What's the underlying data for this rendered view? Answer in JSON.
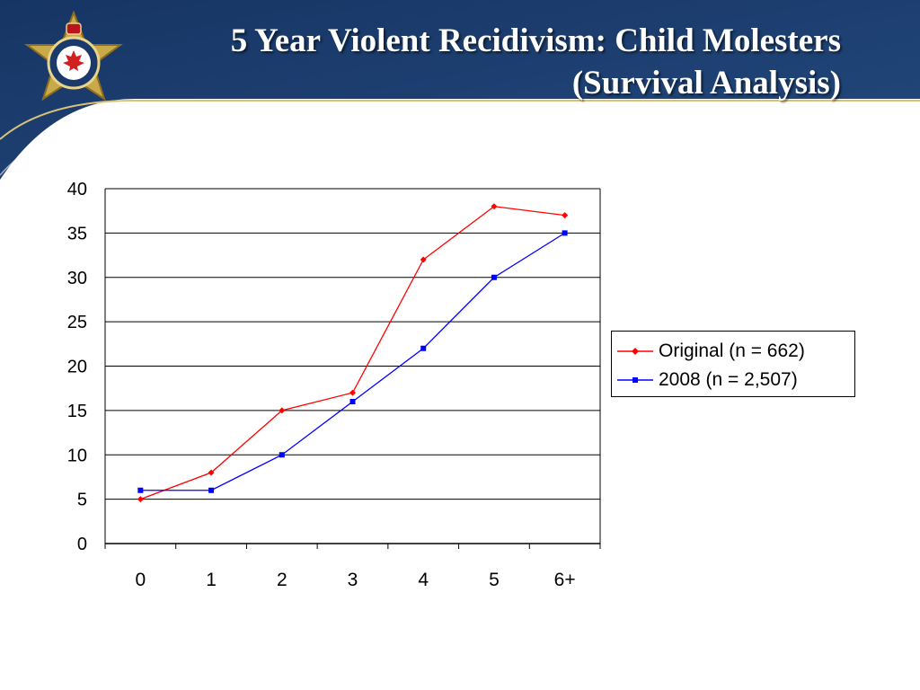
{
  "slide": {
    "title_line1": "5 Year Violent Recidivism: Child Molesters",
    "title_line2": "(Survival Analysis)",
    "logo_icon": "corrections-badge-icon",
    "banner_color": "#1b3a6b",
    "accent_line_color": "#d8c27a"
  },
  "chart_data": {
    "type": "line",
    "title": "",
    "xlabel": "",
    "ylabel": "",
    "categories": [
      "0",
      "1",
      "2",
      "3",
      "4",
      "5",
      "6+"
    ],
    "ylim": [
      0,
      40
    ],
    "yticks": [
      0,
      5,
      10,
      15,
      20,
      25,
      30,
      35,
      40
    ],
    "grid": true,
    "legend_position": "right",
    "series": [
      {
        "name": "Original (n = 662)",
        "values": [
          5,
          8,
          15,
          17,
          32,
          38,
          37
        ],
        "color": "#ff0000",
        "marker": "diamond"
      },
      {
        "name": "2008 (n = 2,507)",
        "values": [
          6,
          6,
          10,
          16,
          22,
          30,
          35
        ],
        "color": "#0000ff",
        "marker": "square"
      }
    ]
  }
}
